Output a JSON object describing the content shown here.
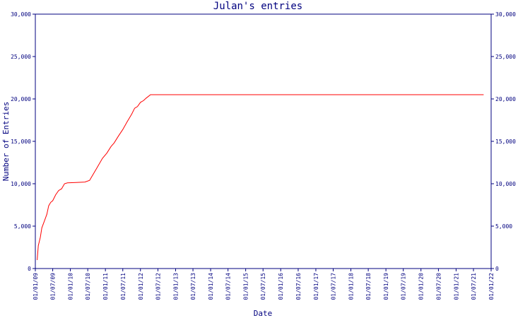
{
  "chart_data": {
    "type": "line",
    "title": "Julan's entries",
    "xlabel": "Date",
    "ylabel": "Number of Entries",
    "ylim": [
      0,
      30000
    ],
    "xlim": [
      "2009-01-01",
      "2022-01-01"
    ],
    "y_ticks": [
      {
        "value": 0,
        "label": "0"
      },
      {
        "value": 5000,
        "label": "5,000"
      },
      {
        "value": 10000,
        "label": "10,000"
      },
      {
        "value": 15000,
        "label": "15,000"
      },
      {
        "value": 20000,
        "label": "20,000"
      },
      {
        "value": 25000,
        "label": "25,000"
      },
      {
        "value": 30000,
        "label": "30,000"
      }
    ],
    "x_ticks": [
      {
        "value": "2009-01-01",
        "label": "01/01/09"
      },
      {
        "value": "2009-07-01",
        "label": "01/07/09"
      },
      {
        "value": "2010-01-01",
        "label": "01/01/10"
      },
      {
        "value": "2010-07-01",
        "label": "01/07/10"
      },
      {
        "value": "2011-01-01",
        "label": "01/01/11"
      },
      {
        "value": "2011-07-01",
        "label": "01/07/11"
      },
      {
        "value": "2012-01-01",
        "label": "01/01/12"
      },
      {
        "value": "2012-07-01",
        "label": "01/07/12"
      },
      {
        "value": "2013-01-01",
        "label": "01/01/13"
      },
      {
        "value": "2013-07-01",
        "label": "01/07/13"
      },
      {
        "value": "2014-01-01",
        "label": "01/01/14"
      },
      {
        "value": "2014-07-01",
        "label": "01/07/14"
      },
      {
        "value": "2015-01-01",
        "label": "01/01/15"
      },
      {
        "value": "2015-07-01",
        "label": "01/07/15"
      },
      {
        "value": "2016-01-01",
        "label": "01/01/16"
      },
      {
        "value": "2016-07-01",
        "label": "01/07/16"
      },
      {
        "value": "2017-01-01",
        "label": "01/01/17"
      },
      {
        "value": "2017-07-01",
        "label": "01/07/17"
      },
      {
        "value": "2018-01-01",
        "label": "01/01/18"
      },
      {
        "value": "2018-07-01",
        "label": "01/07/18"
      },
      {
        "value": "2019-01-01",
        "label": "01/01/19"
      },
      {
        "value": "2019-07-01",
        "label": "01/07/19"
      },
      {
        "value": "2020-01-01",
        "label": "01/01/20"
      },
      {
        "value": "2020-07-01",
        "label": "01/07/20"
      },
      {
        "value": "2021-01-01",
        "label": "01/01/21"
      },
      {
        "value": "2021-07-01",
        "label": "01/07/21"
      },
      {
        "value": "2022-01-01",
        "label": "01/01/22"
      }
    ],
    "series": [
      {
        "color": "#ff0000",
        "points": [
          {
            "x": "2009-01-20",
            "y": 1000
          },
          {
            "x": "2009-02-01",
            "y": 2700
          },
          {
            "x": "2009-02-22",
            "y": 3700
          },
          {
            "x": "2009-03-10",
            "y": 4800
          },
          {
            "x": "2009-04-05",
            "y": 5600
          },
          {
            "x": "2009-05-01",
            "y": 6400
          },
          {
            "x": "2009-05-20",
            "y": 7400
          },
          {
            "x": "2009-06-10",
            "y": 7800
          },
          {
            "x": "2009-07-01",
            "y": 8000
          },
          {
            "x": "2009-08-01",
            "y": 8700
          },
          {
            "x": "2009-09-01",
            "y": 9200
          },
          {
            "x": "2009-10-01",
            "y": 9400
          },
          {
            "x": "2009-11-01",
            "y": 10000
          },
          {
            "x": "2009-12-01",
            "y": 10100
          },
          {
            "x": "2010-03-01",
            "y": 10150
          },
          {
            "x": "2010-06-01",
            "y": 10200
          },
          {
            "x": "2010-07-20",
            "y": 10400
          },
          {
            "x": "2010-10-01",
            "y": 11800
          },
          {
            "x": "2010-12-01",
            "y": 13000
          },
          {
            "x": "2011-01-15",
            "y": 13600
          },
          {
            "x": "2011-03-01",
            "y": 14400
          },
          {
            "x": "2011-04-01",
            "y": 14800
          },
          {
            "x": "2011-05-15",
            "y": 15600
          },
          {
            "x": "2011-07-01",
            "y": 16400
          },
          {
            "x": "2011-08-15",
            "y": 17300
          },
          {
            "x": "2011-10-01",
            "y": 18200
          },
          {
            "x": "2011-11-01",
            "y": 18900
          },
          {
            "x": "2011-12-01",
            "y": 19100
          },
          {
            "x": "2012-01-01",
            "y": 19600
          },
          {
            "x": "2012-02-01",
            "y": 19800
          },
          {
            "x": "2012-03-01",
            "y": 20100
          },
          {
            "x": "2012-04-15",
            "y": 20500
          },
          {
            "x": "2021-10-15",
            "y": 20500
          }
        ]
      }
    ]
  }
}
